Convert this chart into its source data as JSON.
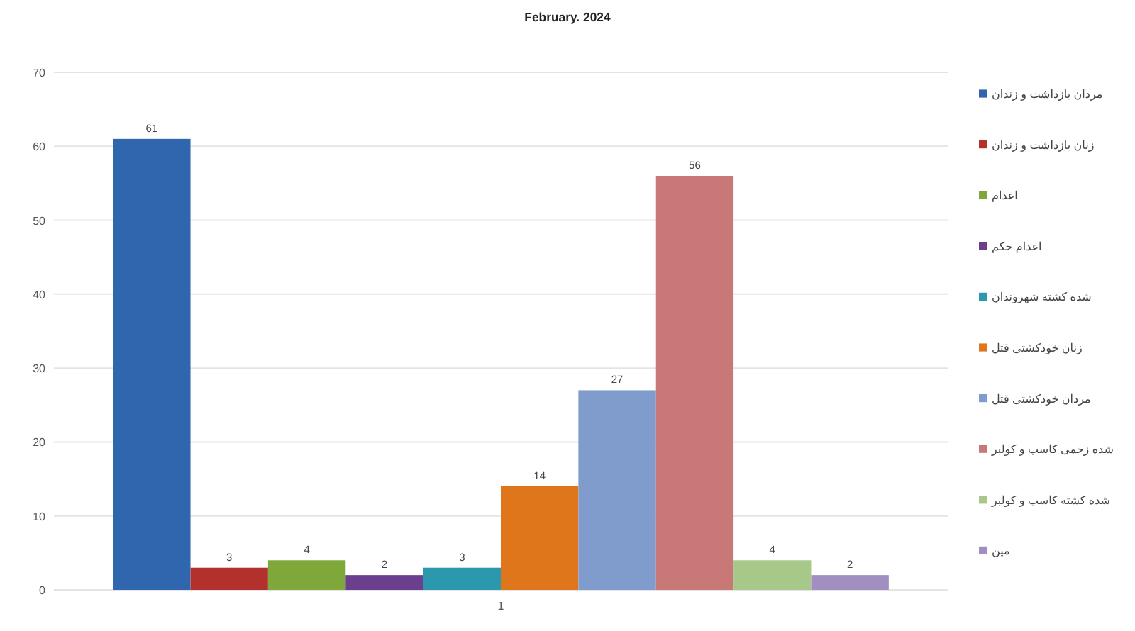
{
  "chart_data": {
    "type": "bar",
    "title": "February. 2024",
    "categories": [
      "1"
    ],
    "series": [
      {
        "name": "مردان بازداشت و زندان",
        "color": "#2f66ad",
        "values": [
          61
        ]
      },
      {
        "name": "زنان بازداشت و زندان",
        "color": "#b3312d",
        "values": [
          3
        ]
      },
      {
        "name": "اعدام",
        "color": "#7fa83a",
        "values": [
          4
        ]
      },
      {
        "name": "اعدام حکم",
        "color": "#6b3f8d",
        "values": [
          2
        ]
      },
      {
        "name": "شده کشته شهروندان",
        "color": "#2b98ae",
        "values": [
          3
        ]
      },
      {
        "name": "زنان خودکشتی قتل",
        "color": "#e0761c",
        "values": [
          14
        ]
      },
      {
        "name": "مردان خودکشتی قتل",
        "color": "#7f9ccc",
        "values": [
          27
        ]
      },
      {
        "name": "شده زخمی کاسب و کولبر",
        "color": "#c97878",
        "values": [
          56
        ]
      },
      {
        "name": "شده کشته کاسب و کولبر",
        "color": "#a6c888",
        "values": [
          4
        ]
      },
      {
        "name": "مین",
        "color": "#a08fc0",
        "values": [
          2
        ]
      }
    ],
    "ylim": [
      0,
      70
    ],
    "yticks": [
      0,
      10,
      20,
      30,
      40,
      50,
      60,
      70
    ],
    "grid": "y",
    "legend": "right",
    "data_labels": true
  }
}
